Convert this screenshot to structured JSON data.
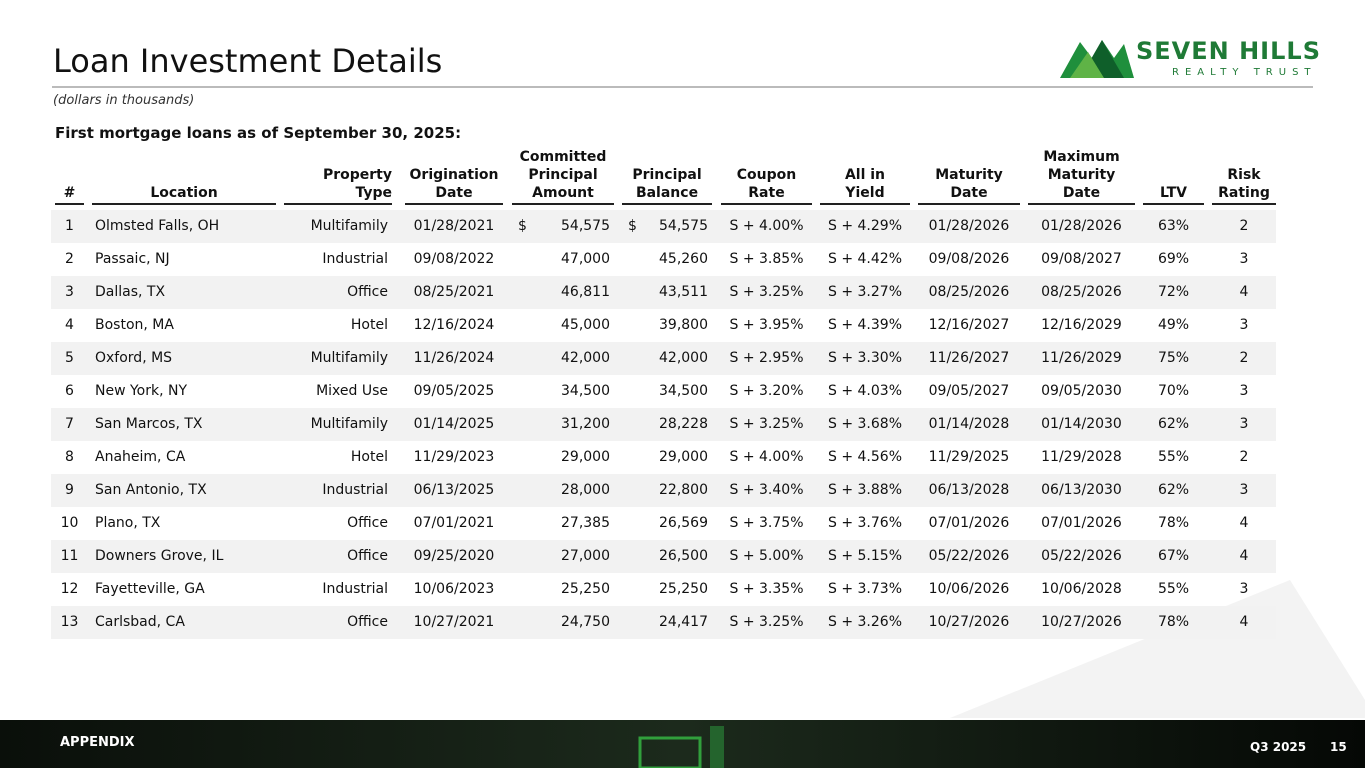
{
  "header": {
    "title": "Loan Investment Details",
    "subtitle": "(dollars in thousands)",
    "logo_name": "SEVEN HILLS",
    "logo_tagline": "REALTY TRUST"
  },
  "section_title": "First mortgage loans as of September 30, 2025:",
  "table": {
    "columns": [
      [
        "#"
      ],
      [
        "Location"
      ],
      [
        "Property Type"
      ],
      [
        "Origination",
        "Date"
      ],
      [
        "Committed",
        "Principal",
        "Amount"
      ],
      [
        "Principal",
        "Balance"
      ],
      [
        "Coupon",
        "Rate"
      ],
      [
        "All in",
        "Yield"
      ],
      [
        "Maturity",
        "Date"
      ],
      [
        "Maximum",
        "Maturity",
        "Date"
      ],
      [
        "LTV"
      ],
      [
        "Risk",
        "Rating"
      ]
    ],
    "currency_symbols": [
      "$",
      "$"
    ],
    "rows": [
      [
        "1",
        "Olmsted Falls, OH",
        "Multifamily",
        "01/28/2021",
        "54,575",
        "54,575",
        "S + 4.00%",
        "S + 4.29%",
        "01/28/2026",
        "01/28/2026",
        "63%",
        "2"
      ],
      [
        "2",
        "Passaic, NJ",
        "Industrial",
        "09/08/2022",
        "47,000",
        "45,260",
        "S + 3.85%",
        "S + 4.42%",
        "09/08/2026",
        "09/08/2027",
        "69%",
        "3"
      ],
      [
        "3",
        "Dallas, TX",
        "Office",
        "08/25/2021",
        "46,811",
        "43,511",
        "S + 3.25%",
        "S + 3.27%",
        "08/25/2026",
        "08/25/2026",
        "72%",
        "4"
      ],
      [
        "4",
        "Boston, MA",
        "Hotel",
        "12/16/2024",
        "45,000",
        "39,800",
        "S + 3.95%",
        "S + 4.39%",
        "12/16/2027",
        "12/16/2029",
        "49%",
        "3"
      ],
      [
        "5",
        "Oxford, MS",
        "Multifamily",
        "11/26/2024",
        "42,000",
        "42,000",
        "S + 2.95%",
        "S + 3.30%",
        "11/26/2027",
        "11/26/2029",
        "75%",
        "2"
      ],
      [
        "6",
        "New York, NY",
        "Mixed Use",
        "09/05/2025",
        "34,500",
        "34,500",
        "S + 3.20%",
        "S + 4.03%",
        "09/05/2027",
        "09/05/2030",
        "70%",
        "3"
      ],
      [
        "7",
        "San Marcos, TX",
        "Multifamily",
        "01/14/2025",
        "31,200",
        "28,228",
        "S + 3.25%",
        "S + 3.68%",
        "01/14/2028",
        "01/14/2030",
        "62%",
        "3"
      ],
      [
        "8",
        "Anaheim, CA",
        "Hotel",
        "11/29/2023",
        "29,000",
        "29,000",
        "S + 4.00%",
        "S + 4.56%",
        "11/29/2025",
        "11/29/2028",
        "55%",
        "2"
      ],
      [
        "9",
        "San Antonio, TX",
        "Industrial",
        "06/13/2025",
        "28,000",
        "22,800",
        "S + 3.40%",
        "S + 3.88%",
        "06/13/2028",
        "06/13/2030",
        "62%",
        "3"
      ],
      [
        "10",
        "Plano, TX",
        "Office",
        "07/01/2021",
        "27,385",
        "26,569",
        "S + 3.75%",
        "S + 3.76%",
        "07/01/2026",
        "07/01/2026",
        "78%",
        "4"
      ],
      [
        "11",
        "Downers Grove, IL",
        "Office",
        "09/25/2020",
        "27,000",
        "26,500",
        "S + 5.00%",
        "S + 5.15%",
        "05/22/2026",
        "05/22/2026",
        "67%",
        "4"
      ],
      [
        "12",
        "Fayetteville, GA",
        "Industrial",
        "10/06/2023",
        "25,250",
        "25,250",
        "S + 3.35%",
        "S + 3.73%",
        "10/06/2026",
        "10/06/2028",
        "55%",
        "3"
      ],
      [
        "13",
        "Carlsbad, CA",
        "Office",
        "10/27/2021",
        "24,750",
        "24,417",
        "S + 3.25%",
        "S + 3.26%",
        "10/27/2026",
        "10/27/2026",
        "78%",
        "4"
      ]
    ]
  },
  "footer": {
    "section": "APPENDIX",
    "period": "Q3 2025",
    "page": "15"
  }
}
